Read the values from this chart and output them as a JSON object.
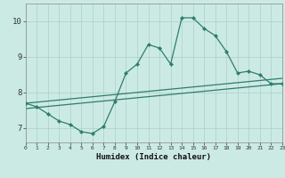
{
  "xlabel": "Humidex (Indice chaleur)",
  "background_color": "#cceae4",
  "line_color": "#2e7d6e",
  "grid_color": "#aacfc8",
  "x_values": [
    0,
    1,
    2,
    3,
    4,
    5,
    6,
    7,
    8,
    9,
    10,
    11,
    12,
    13,
    14,
    15,
    16,
    17,
    18,
    19,
    20,
    21,
    22,
    23
  ],
  "y_main": [
    7.7,
    7.6,
    7.4,
    7.2,
    7.1,
    6.9,
    6.85,
    7.05,
    7.75,
    8.55,
    8.8,
    9.35,
    9.25,
    8.8,
    10.1,
    10.1,
    9.8,
    9.6,
    9.15,
    8.55,
    8.6,
    8.5,
    8.25,
    8.25
  ],
  "trend1_start": 7.55,
  "trend1_end": 8.25,
  "trend2_start": 7.7,
  "trend2_end": 8.4,
  "ylim": [
    6.6,
    10.5
  ],
  "xlim": [
    0,
    23
  ]
}
